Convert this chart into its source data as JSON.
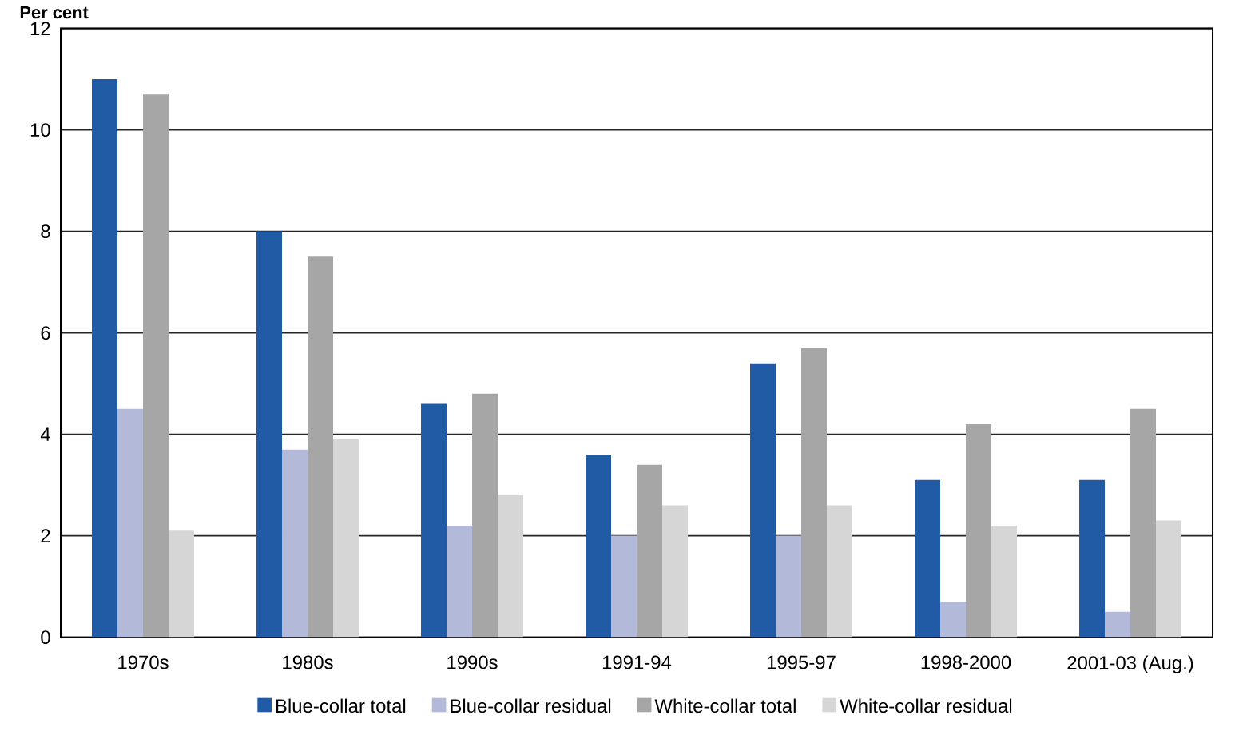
{
  "chart_data": {
    "type": "bar",
    "ylabel": "Per cent",
    "categories": [
      "1970s",
      "1980s",
      "1990s",
      "1991-94",
      "1995-97",
      "1998-2000",
      "2001-03 (Aug.)"
    ],
    "series": [
      {
        "name": "Blue-collar total",
        "color": "#215ba6",
        "values": [
          11,
          8,
          4.6,
          3.6,
          5.4,
          3.1,
          3.1
        ]
      },
      {
        "name": "Blue-collar residual",
        "color": "#b3b9d9",
        "values": [
          4.5,
          3.7,
          2.2,
          2.0,
          2.0,
          0.7,
          0.5
        ]
      },
      {
        "name": "White-collar total",
        "color": "#a6a6a6",
        "values": [
          10.7,
          7.5,
          4.8,
          3.4,
          5.7,
          4.2,
          4.5
        ]
      },
      {
        "name": "White-collar residual",
        "color": "#d6d6d6",
        "values": [
          2.1,
          3.9,
          2.8,
          2.6,
          2.6,
          2.2,
          2.3
        ]
      }
    ],
    "ylim": [
      0,
      12
    ],
    "yticks": [
      0,
      2,
      4,
      6,
      8,
      10,
      12
    ],
    "grid": "y",
    "legend": "bottom"
  }
}
